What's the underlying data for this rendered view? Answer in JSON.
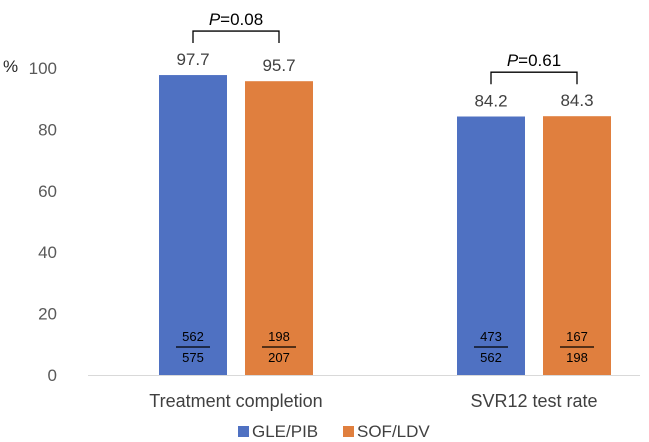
{
  "chart_data": {
    "type": "bar",
    "ylabel": "%",
    "ylim": [
      0,
      100
    ],
    "yticks": [
      0,
      20,
      40,
      60,
      80,
      100
    ],
    "grid": false,
    "legend_position": "bottom",
    "categories": [
      "Treatment completion",
      "SVR12 test rate"
    ],
    "series": [
      {
        "name": "GLE/PIB",
        "color": "#4F71C2",
        "values": [
          97.7,
          84.2
        ],
        "value_labels": [
          "97.7",
          "84.2"
        ],
        "numerators": [
          "562",
          "473"
        ],
        "denominators": [
          "575",
          "562"
        ]
      },
      {
        "name": "SOF/LDV",
        "color": "#E07F3E",
        "values": [
          95.7,
          84.3
        ],
        "value_labels": [
          "95.7",
          "84.3"
        ],
        "numerators": [
          "198",
          "167"
        ],
        "denominators": [
          "207",
          "198"
        ]
      }
    ],
    "annotations": [
      {
        "category_index": 0,
        "p_letter": "P",
        "p_rest": "=0.08"
      },
      {
        "category_index": 1,
        "p_letter": "P",
        "p_rest": "=0.61"
      }
    ]
  }
}
